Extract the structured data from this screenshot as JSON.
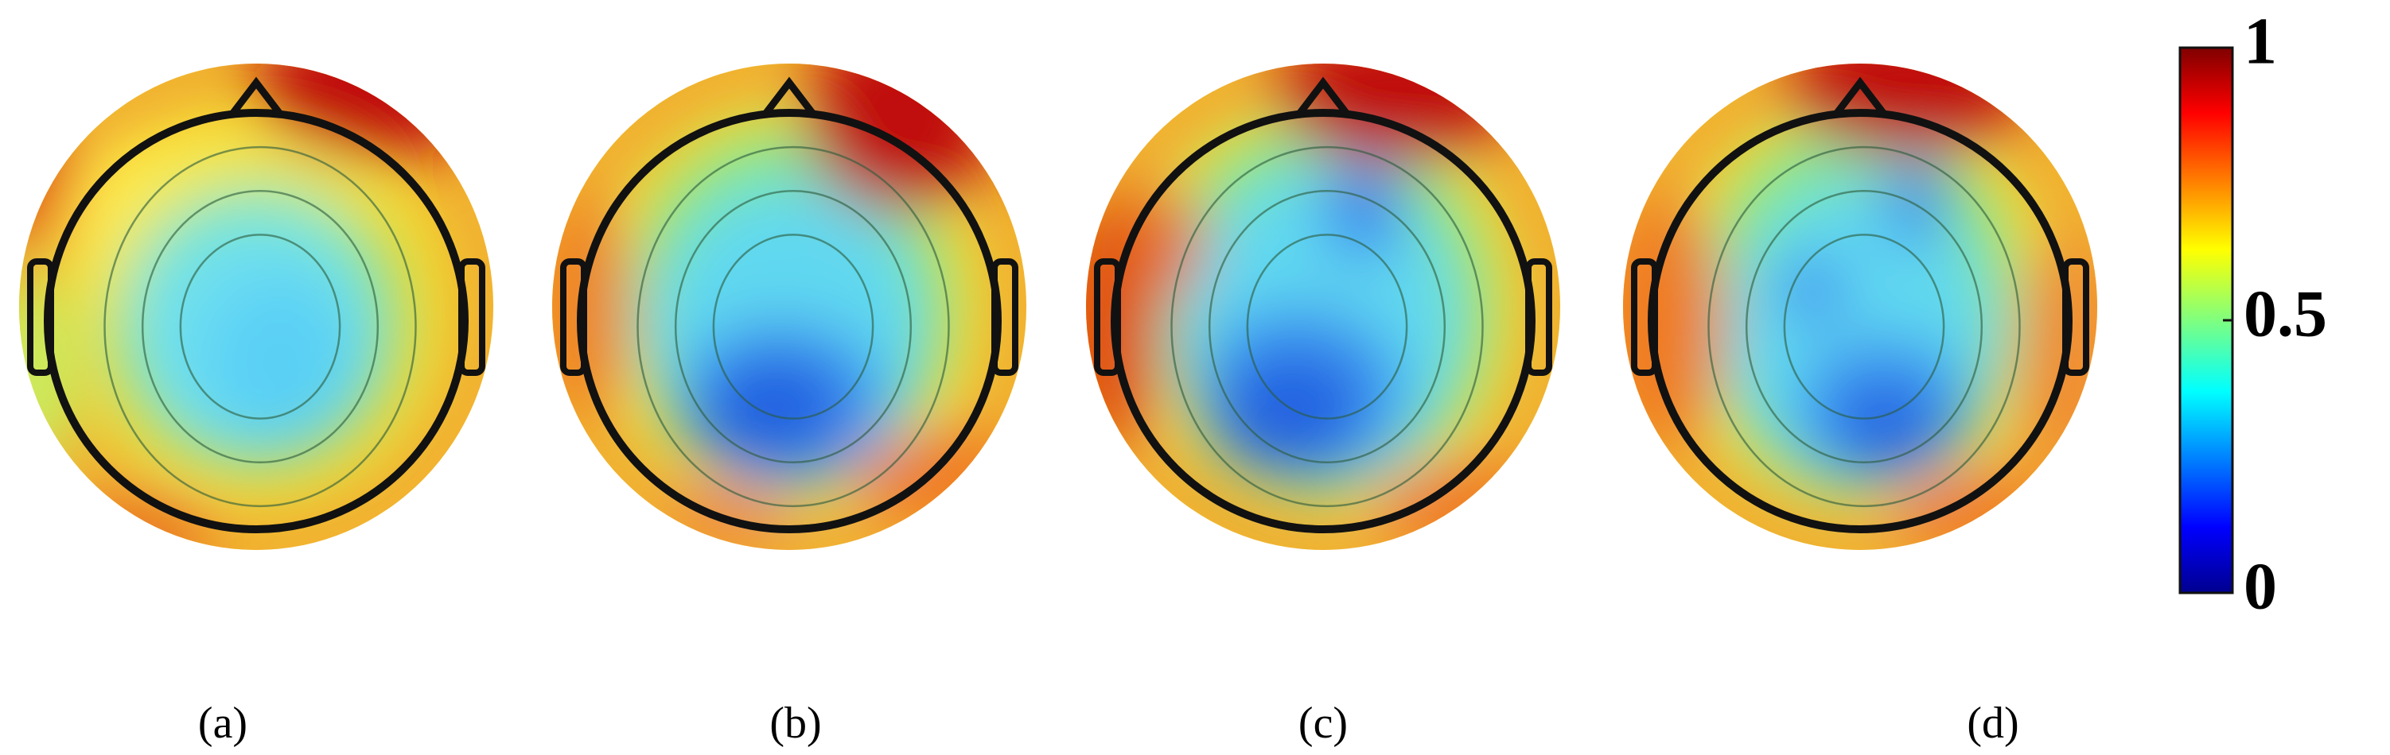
{
  "panels": [
    {
      "label": "(a)"
    },
    {
      "label": "(b)"
    },
    {
      "label": "(c)"
    },
    {
      "label": "(d)"
    }
  ],
  "colorbar": {
    "lim": [
      0,
      1
    ],
    "ticks": [
      0,
      0.5,
      1
    ]
  }
}
